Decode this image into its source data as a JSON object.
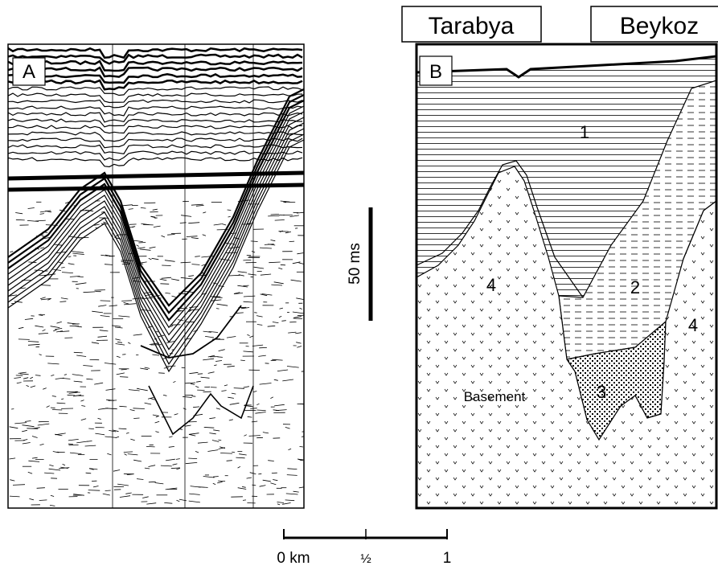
{
  "panel_a": {
    "label": "A"
  },
  "panel_b": {
    "label": "B",
    "locations": [
      "Tarabya",
      "Beykoz"
    ],
    "units": [
      "1",
      "2",
      "3",
      "4",
      "4"
    ],
    "basement_label": "Basement"
  },
  "vertical_scale": {
    "label": "50 ms"
  },
  "horizontal_scale": {
    "labels": [
      "0 km",
      "½",
      "1"
    ]
  }
}
